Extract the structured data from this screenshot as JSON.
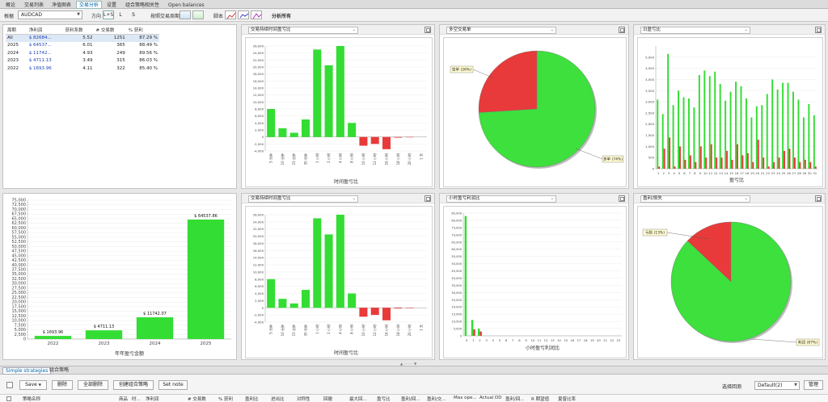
{
  "top_tabs": [
    "概论",
    "交易列表",
    "净值图表",
    "交易分析",
    "设置",
    "组合策略相关性",
    "Open balances"
  ],
  "active_tab_index": 3,
  "toolbar": {
    "symbol_label": "根据",
    "symbol_value": "AUDCAD",
    "direction_label": "方向",
    "direction_value": "L+S",
    "dir_long": "L",
    "dir_short": "S",
    "period_label": "按照交易周期",
    "chart_label": "脚本",
    "analysis_label": "分析所有"
  },
  "stats_table": {
    "headers": [
      "周期",
      "净利润",
      "获利系数",
      "# 交易数",
      "% 获利"
    ],
    "rows": [
      {
        "period": "All",
        "net": "$ 82684...",
        "pf": "5.52",
        "trades": "1251",
        "win": "87.29 %"
      },
      {
        "period": "2025",
        "net": "$ 64537...",
        "pf": "6.01",
        "trades": "365",
        "win": "88.49 %"
      },
      {
        "period": "2024",
        "net": "$ 11742...",
        "pf": "4.93",
        "trades": "249",
        "win": "89.56 %"
      },
      {
        "period": "2023",
        "net": "$ 4711.13",
        "pf": "3.49",
        "trades": "315",
        "win": "86.03 %"
      },
      {
        "period": "2022",
        "net": "$ 1693.96",
        "pf": "4.11",
        "trades": "322",
        "win": "85.40 %"
      }
    ]
  },
  "panels": {
    "p1_select": "交易持续时间盈亏比",
    "p2_select": "多空交易单",
    "p3_select": "日盈亏比",
    "p5_select": "交易持续时间盈亏比",
    "p6_select": "小时盈亏利润比",
    "p7_select": "盈利/损失"
  },
  "chart_data": [
    {
      "type": "bar",
      "title": "",
      "xlabel": "年年盈亏金额",
      "ylabel": "",
      "categories": [
        "2022",
        "2023",
        "2024",
        "2025"
      ],
      "values": [
        1693.96,
        4711.13,
        11742.07,
        64537.86
      ],
      "data_labels": [
        "$ 1693.96",
        "$ 4711.13",
        "$ 11742.07",
        "$ 64537.86"
      ],
      "ylim": [
        0,
        75000
      ],
      "yticks": [
        "0",
        "2,500",
        "5,000",
        "7,500",
        "10,000",
        "12,500",
        "15,000",
        "17,500",
        "20,000",
        "22,500",
        "25,000",
        "27,500",
        "30,000",
        "32,500",
        "35,000",
        "37,500",
        "40,000",
        "42,500",
        "45,000",
        "47,500",
        "50,000",
        "52,500",
        "55,000",
        "57,500",
        "60,000",
        "62,500",
        "65,000",
        "67,500",
        "70,000",
        "72,500",
        "75,000"
      ],
      "color": "#33dd33"
    },
    {
      "type": "bar",
      "title": "",
      "xlabel": "时间盈亏比",
      "categories": [
        "5 分钟",
        "10 分钟",
        "15 分钟",
        "30 分钟",
        "1 小时",
        "2 小时",
        "4 小时",
        "8 小时",
        "10 小时",
        "12 小时",
        "16 小时",
        "18 小时",
        "20 小时",
        "1 天"
      ],
      "values": [
        8000,
        2500,
        1200,
        5000,
        25000,
        20500,
        26000,
        4000,
        -2500,
        -2000,
        -3500,
        -200,
        -100,
        0
      ],
      "ylim": [
        -4000,
        26000
      ],
      "yticks": [
        "-4,000",
        "-2,000",
        "0",
        "2,000",
        "4,000",
        "6,000",
        "8,000",
        "10,000",
        "12,000",
        "14,000",
        "16,000",
        "18,000",
        "20,000",
        "22,000",
        "24,000",
        "26,000"
      ],
      "pos_color": "#33dd33",
      "neg_color": "#e83a3a"
    },
    {
      "type": "pie",
      "title": "",
      "labels": [
        "空单 (26%)",
        "多单 (74%)"
      ],
      "values": [
        26,
        74
      ],
      "colors": [
        "#e83a3a",
        "#3de03d"
      ]
    },
    {
      "type": "bar",
      "title": "",
      "xlabel": "盈亏比",
      "categories": [
        "1",
        "2",
        "3",
        "4",
        "5",
        "6",
        "7",
        "8",
        "9",
        "10",
        "11",
        "12",
        "13",
        "14",
        "15",
        "16",
        "17",
        "18",
        "19",
        "20",
        "21",
        "22",
        "23",
        "24",
        "25",
        "26",
        "27",
        "28",
        "29",
        "30",
        "31"
      ],
      "series": [
        {
          "name": "",
          "values": [
            3100,
            2450,
            5150,
            2850,
            3500,
            3200,
            3150,
            2750,
            4200,
            4400,
            4150,
            4350,
            3800,
            3050,
            3450,
            3900,
            3700,
            3150,
            2300,
            2800,
            2850,
            3350,
            4000,
            3550,
            3850,
            3850,
            3450,
            3100,
            2300,
            2900,
            2400
          ]
        },
        {
          "name": "",
          "values": [
            100,
            900,
            1400,
            100,
            1000,
            400,
            600,
            300,
            1000,
            500,
            1100,
            500,
            500,
            800,
            400,
            1100,
            600,
            700,
            300,
            1300,
            500,
            100,
            300,
            500,
            800,
            900,
            500,
            300,
            400,
            300,
            100
          ]
        }
      ],
      "ylim": [
        0,
        5500
      ],
      "yticks": [
        "0",
        "500",
        "1,000",
        "1,500",
        "2,000",
        "2,500",
        "3,000",
        "3,500",
        "4,000",
        "4,500",
        "5,000"
      ],
      "colors": [
        "#33dd33",
        "#e83a3a"
      ]
    },
    {
      "type": "bar",
      "title": "",
      "xlabel": "时间盈亏比",
      "categories": [
        "5 分钟",
        "10 分钟",
        "15 分钟",
        "30 分钟",
        "1 小时",
        "2 小时",
        "4 小时",
        "8 小时",
        "10 小时",
        "12 小时",
        "16 小时",
        "18 小时",
        "20 小时",
        "1 天"
      ],
      "values": [
        8000,
        2500,
        1200,
        5000,
        25000,
        20500,
        26000,
        4000,
        -2500,
        -2000,
        -3500,
        -200,
        -100,
        0
      ],
      "ylim": [
        -4000,
        26000
      ],
      "yticks": [
        "-4,000",
        "-2,000",
        "0",
        "2,000",
        "4,000",
        "6,000",
        "8,000",
        "10,000",
        "12,000",
        "14,000",
        "16,000",
        "18,000",
        "20,000",
        "22,000",
        "24,000",
        "26,000"
      ],
      "pos_color": "#33dd33",
      "neg_color": "#e83a3a"
    },
    {
      "type": "bar",
      "title": "",
      "xlabel": "小时盈亏利润比",
      "categories": [
        "0",
        "1",
        "2",
        "3",
        "4",
        "5",
        "6",
        "7",
        "8",
        "9",
        "10",
        "11",
        "12",
        "13",
        "14",
        "15",
        "16",
        "17",
        "18",
        "19",
        "20",
        "21",
        "22",
        "23"
      ],
      "series": [
        {
          "name": "",
          "values": [
            83000,
            11000,
            5000,
            0,
            0,
            0,
            0,
            0,
            0,
            0,
            0,
            0,
            0,
            0,
            0,
            0,
            0,
            0,
            0,
            0,
            0,
            0,
            0,
            0
          ]
        },
        {
          "name": "",
          "values": [
            0,
            4500,
            3000,
            0,
            0,
            0,
            0,
            0,
            0,
            0,
            0,
            0,
            0,
            0,
            0,
            0,
            0,
            0,
            0,
            0,
            0,
            0,
            0,
            0
          ]
        }
      ],
      "ylim": [
        0,
        85000
      ],
      "yticks": [
        "0",
        "5,000",
        "10,000",
        "15,000",
        "20,000",
        "25,000",
        "30,000",
        "35,000",
        "40,000",
        "45,000",
        "50,000",
        "55,000",
        "60,000",
        "65,000",
        "70,000",
        "75,000",
        "80,000",
        "85,000"
      ],
      "colors": [
        "#33dd33",
        "#e83a3a"
      ]
    },
    {
      "type": "pie",
      "title": "",
      "labels": [
        "亏损 (13%)",
        "利润 (87%)"
      ],
      "values": [
        13,
        87
      ],
      "colors": [
        "#e83a3a",
        "#3de03d"
      ]
    }
  ],
  "bottom": {
    "tabs": [
      "Simple strategies",
      "组合策略"
    ],
    "buttons": [
      "Save",
      "删除",
      "全部删除",
      "创建组合策略",
      "Set note"
    ],
    "select_label": "选择回测",
    "select_value": "Default(2)",
    "manage_label": "管理",
    "columns": [
      "策略名称",
      "商品",
      "时...",
      "净利润",
      "# 交易数",
      "% 获利",
      "盈利比",
      "进出比",
      "对称性",
      "回撤",
      "最大回...",
      "盈亏比",
      "盈利/回...",
      "盈利/交...",
      "Max ope...",
      "Actual DD",
      "盈利/回...",
      "R 期望值",
      "夏普比率"
    ]
  }
}
